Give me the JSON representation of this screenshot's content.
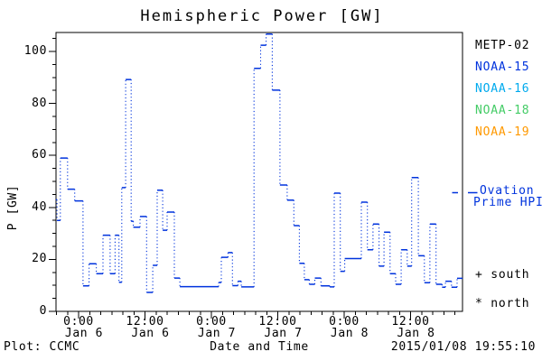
{
  "title": "Hemispheric Power [GW]",
  "y_axis": {
    "label": "P [GW]",
    "ticks": [
      0,
      20,
      40,
      60,
      80,
      100
    ],
    "minor_step": 5,
    "range": [
      0,
      107.3
    ]
  },
  "x_axis": {
    "label": "Date and Time",
    "range_hours": [
      -4.08,
      69.4
    ],
    "minor_step_hours": 2,
    "ticks": [
      {
        "hour": 0,
        "time": "0:00",
        "date": "Jan 6"
      },
      {
        "hour": 12,
        "time": "12:00",
        "date": "Jan 6"
      },
      {
        "hour": 24,
        "time": "0:00",
        "date": "Jan 7"
      },
      {
        "hour": 36,
        "time": "12:00",
        "date": "Jan 7"
      },
      {
        "hour": 48,
        "time": "0:00",
        "date": "Jan 8"
      },
      {
        "hour": 60,
        "time": "12:00",
        "date": "Jan 8"
      }
    ]
  },
  "legend": {
    "satellites": [
      {
        "label": "METP-02",
        "color": "#000000"
      },
      {
        "label": "NOAA-15",
        "color": "#0033dd"
      },
      {
        "label": "NOAA-16",
        "color": "#00aaee"
      },
      {
        "label": "NOAA-18",
        "color": "#44cc66"
      },
      {
        "label": "NOAA-19",
        "color": "#ff9900"
      }
    ],
    "model": {
      "line1": "Ovation",
      "line2": "Prime HPI",
      "color": "#0033dd"
    },
    "hemisphere_markers": [
      {
        "symbol": "+",
        "label": "south"
      },
      {
        "symbol": "*",
        "label": "north"
      }
    ]
  },
  "footer": {
    "left": "Plot: CCMC",
    "right": "2015/01/08 19:55:10"
  },
  "chart_data": {
    "type": "line",
    "style": "step plot: solid horizontal bars joined by dotted vertical connectors",
    "series_name": "Ovation Prime HPI",
    "color": "#0033dd",
    "x_unit": "hours since 2015-01-06 00:00",
    "xlim": [
      -4.08,
      69.4
    ],
    "ylim": [
      0,
      107.3
    ],
    "grid": false,
    "t_hours": [
      -4.1,
      -3.9,
      -3.3,
      -2.0,
      -0.7,
      0.8,
      1.9,
      3.2,
      4.4,
      5.7,
      6.6,
      7.3,
      7.8,
      8.5,
      9.5,
      9.9,
      11.1,
      12.3,
      13.4,
      14.2,
      15.2,
      16.0,
      17.3,
      18.3,
      25.3,
      25.8,
      27.0,
      27.8,
      28.8,
      29.4,
      31.7,
      32.9,
      33.9,
      35.0,
      36.4,
      37.7,
      38.9,
      39.9,
      40.8,
      41.7,
      42.7,
      43.8,
      45.4,
      46.2,
      47.3,
      48.1,
      51.1,
      52.2,
      53.2,
      54.3,
      55.2,
      56.3,
      57.3,
      58.3,
      59.4,
      60.2,
      61.4,
      62.5,
      63.5,
      64.6,
      65.7,
      66.3,
      67.4,
      68.4
    ],
    "gw": [
      43,
      35,
      59,
      47,
      42.5,
      9.8,
      18.3,
      14.5,
      29.3,
      14.5,
      29.3,
      11.2,
      47.6,
      89.2,
      34.7,
      32.4,
      36.5,
      7.3,
      17.7,
      46.6,
      31.2,
      38.2,
      12.8,
      9.5,
      11.1,
      20.8,
      22.6,
      9.9,
      11.6,
      9.4,
      93.5,
      102.4,
      106.7,
      85.1,
      48.6,
      42.8,
      33,
      18.5,
      12.2,
      10.4,
      12.8,
      9.8,
      9.4,
      45.5,
      15.4,
      20.3,
      42,
      23.7,
      33.6,
      17.4,
      30.5,
      14.5,
      10.4,
      23.7,
      17.4,
      51.5,
      21.4,
      11,
      33.6,
      10.4,
      9.3,
      11.6,
      9.3,
      12.7
    ]
  }
}
